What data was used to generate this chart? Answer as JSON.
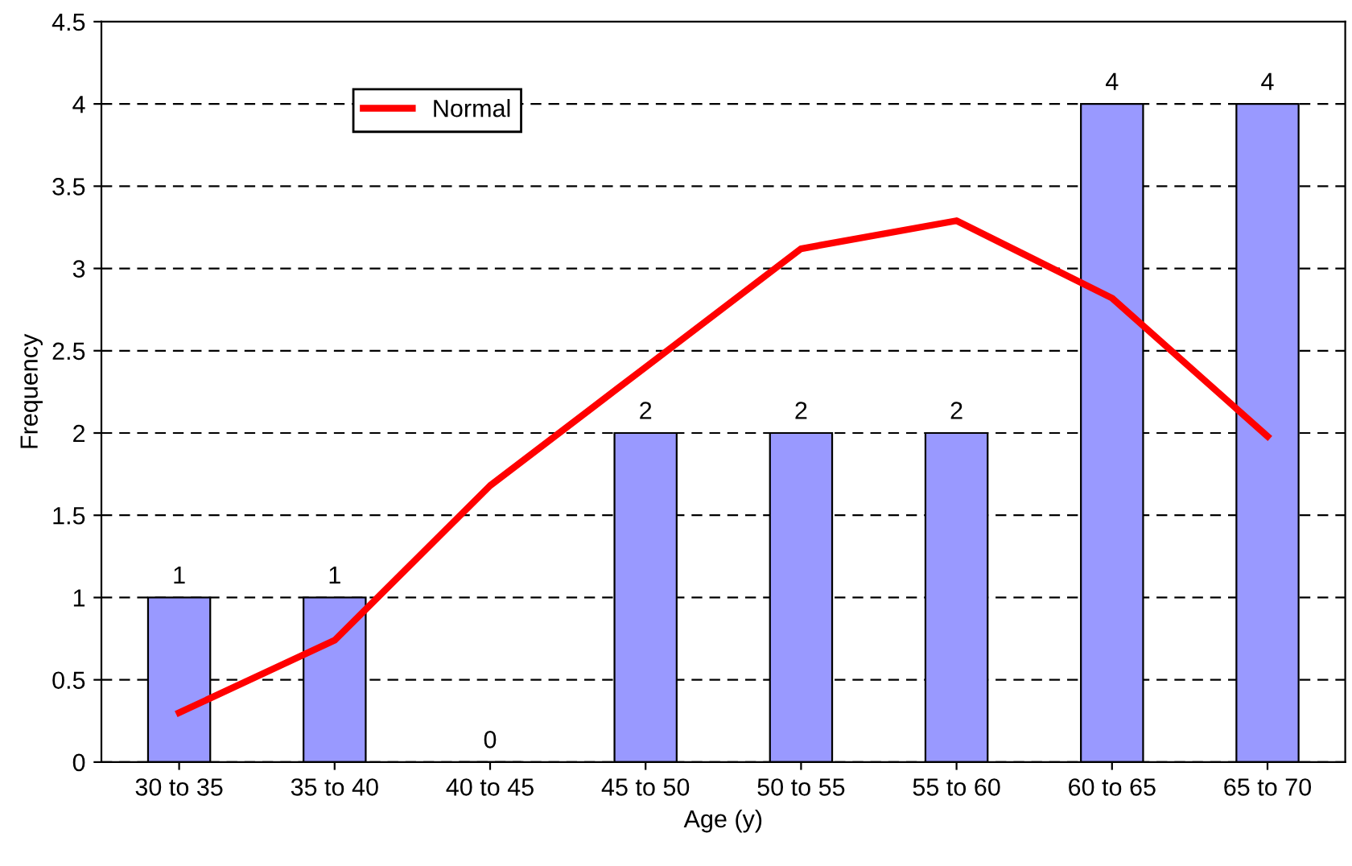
{
  "chart_data": {
    "type": "bar",
    "xlabel": "Age (y)",
    "ylabel": "Frequency",
    "categories": [
      "30 to 35",
      "35 to 40",
      "40 to 45",
      "45 to 50",
      "50 to 55",
      "55 to 60",
      "60 to 65",
      "65 to 70"
    ],
    "series": [
      {
        "color": "#9999ff",
        "values": [
          1,
          1,
          0,
          2,
          2,
          2,
          4,
          4
        ],
        "data_labels": true
      },
      {
        "type": "line",
        "name": "Normal",
        "color": "#ff0000",
        "values": [
          0.3,
          0.74,
          1.68,
          2.4,
          3.12,
          3.29,
          2.82,
          1.98
        ]
      }
    ],
    "ylim": [
      0,
      4.5
    ],
    "yticks": [
      0,
      0.5,
      1,
      1.5,
      2,
      2.5,
      3,
      3.5,
      4,
      4.5
    ],
    "grid": "y",
    "line_style": "solid",
    "marker": "none",
    "legend": "top left"
  }
}
